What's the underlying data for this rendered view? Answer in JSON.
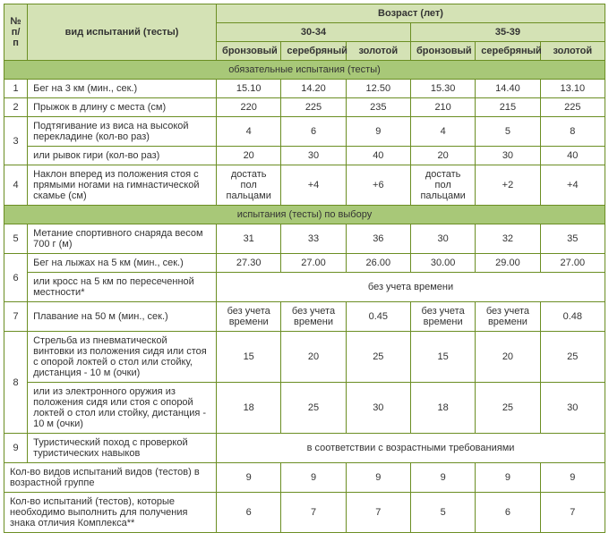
{
  "headers": {
    "num": "№ п/п",
    "test_type": "вид испытаний (тесты)",
    "age": "Возраст (лет)",
    "age1": "30-34",
    "age2": "35-39",
    "bronze": "бронзовый",
    "silver": "серебряный",
    "gold": "золотой"
  },
  "sections": {
    "mandatory": "обязательные испытания (тесты)",
    "optional": "испытания (тесты) по выбору"
  },
  "rows": {
    "r1": {
      "n": "1",
      "name": "Бег на 3 км (мин., сек.)",
      "v": [
        "15.10",
        "14.20",
        "12.50",
        "15.30",
        "14.40",
        "13.10"
      ]
    },
    "r2": {
      "n": "2",
      "name": "Прыжок в длину с места (см)",
      "v": [
        "220",
        "225",
        "235",
        "210",
        "215",
        "225"
      ]
    },
    "r3": {
      "n": "3",
      "name_a": "Подтягивание из виса на высокой перекладине (кол-во раз)",
      "va": [
        "4",
        "6",
        "9",
        "4",
        "5",
        "8"
      ],
      "name_b": "или рывок гири (кол-во раз)",
      "vb": [
        "20",
        "30",
        "40",
        "20",
        "30",
        "40"
      ]
    },
    "r4": {
      "n": "4",
      "name": "Наклон вперед из положения стоя с прямыми ногами на гимнастической скамье (см)",
      "v": [
        "достать пол пальцами",
        "+4",
        "+6",
        "достать пол пальцами",
        "+2",
        "+4"
      ]
    },
    "r5": {
      "n": "5",
      "name": "Метание спортивного снаряда весом 700 г (м)",
      "v": [
        "31",
        "33",
        "36",
        "30",
        "32",
        "35"
      ]
    },
    "r6": {
      "n": "6",
      "name_a": "Бег на лыжах на 5 км (мин., сек.)",
      "va": [
        "27.30",
        "27.00",
        "26.00",
        "30.00",
        "29.00",
        "27.00"
      ],
      "name_b": "или кросс на 5 км по пересеченной местности*",
      "vb_span": "без учета времени"
    },
    "r7": {
      "n": "7",
      "name": "Плавание на 50 м (мин., сек.)",
      "v": [
        "без учета времени",
        "без учета времени",
        "0.45",
        "без учета времени",
        "без учета времени",
        "0.48"
      ]
    },
    "r8": {
      "n": "8",
      "name_a": "Стрельба из пневматической винтовки из положения сидя или стоя с опорой локтей о стол или стойку, дистанция - 10 м (очки)",
      "va": [
        "15",
        "20",
        "25",
        "15",
        "20",
        "25"
      ],
      "name_b": "или из электронного оружия из положения сидя или стоя с опорой локтей о стол или стойку, дистанция - 10 м (очки)",
      "vb": [
        "18",
        "25",
        "30",
        "18",
        "25",
        "30"
      ]
    },
    "r9": {
      "n": "9",
      "name": "Туристический поход с проверкой туристических навыков",
      "span": "в соответствии с возрастными требованиями"
    },
    "total1": {
      "name": "Кол-во видов испытаний видов (тестов) в возрастной группе",
      "v": [
        "9",
        "9",
        "9",
        "9",
        "9",
        "9"
      ]
    },
    "total2": {
      "name": "Кол-во испытаний (тестов), которые необходимо выполнить для получения знака отличия Комплекса**",
      "v": [
        "6",
        "7",
        "7",
        "5",
        "6",
        "7"
      ]
    }
  }
}
